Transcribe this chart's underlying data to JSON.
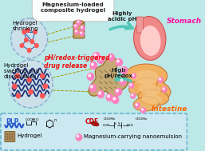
{
  "bg_color": "#bce8e8",
  "legend_bg": "#cce8f0",
  "title_text": "Magnesium-loaded\ncomposite hydrogel",
  "stomach_label": "Stomach",
  "intestine_label": "Intestine",
  "acidic_label": "Highly\nacidic pH",
  "high_ph_label": "High\npH/redox",
  "shrinking_label": "Hydrogel\nshrinking",
  "swelling_label": "Hydrogel\nswelling and\ndissociation",
  "drug_release_label": "pH/redox-triggered\ndrug release",
  "plp_label": "PLP",
  "cde_label": "CDE",
  "hydrogel_label": "Hydrogel",
  "nano_label": "Magnesium-carrying nanoemulsion",
  "stomach_color": "#f5a0b0",
  "intestine_color_outer": "#f0b060",
  "intestine_color_inner": "#f5c888",
  "arrow_color": "#50c8b8",
  "drug_release_color": "#ee1111",
  "nanoemulsion_color": "#ff80c0",
  "nanoemulsion_highlight": "#ffffff",
  "cde_color": "#cc0000",
  "plp_color": "#2255cc",
  "stomach_label_color": "#ff10a0",
  "intestine_label_color": "#ff6600",
  "network_line_color": "#3366aa",
  "network_node_color": "#ff5555",
  "wavy_line_color": "#223377",
  "dashed_line_color": "#aa9900",
  "hydrogel_block_color": "#c8a050",
  "hydrogel_block_edge": "#906020",
  "circle_fill": "#cce0ea",
  "circle_edge": "#88aacc",
  "legend_edge": "#55aacc",
  "figsize": [
    2.57,
    1.89
  ],
  "dpi": 100
}
